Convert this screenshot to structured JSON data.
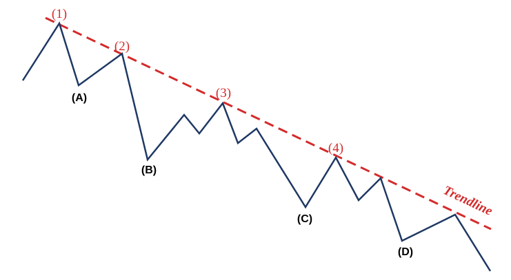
{
  "colors": {
    "trendline": "#d42b2b",
    "price_line": "#1f3864",
    "peak_label": "#d42b2b",
    "trough_label": "#000000",
    "background": "#ffffff"
  },
  "trendline": {
    "label": "Trendline",
    "style": "dashed"
  },
  "peak_labels": [
    "(1)",
    "(2)",
    "(3)",
    "(4)"
  ],
  "trough_labels": [
    "(A)",
    "(B)",
    "(C)",
    "(D)"
  ]
}
